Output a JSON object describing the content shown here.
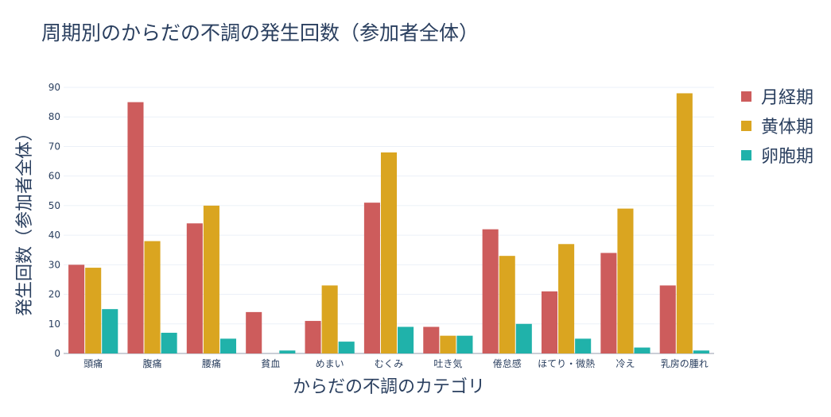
{
  "chart_data": {
    "type": "bar",
    "title": "周期別のからだの不調の発生回数（参加者全体）",
    "xlabel": "からだの不調のカテゴリ",
    "ylabel": "発生回数（参加者全体）",
    "ylim": [
      0,
      90
    ],
    "yticks": [
      0,
      10,
      20,
      30,
      40,
      50,
      60,
      70,
      80,
      90
    ],
    "grid": true,
    "legend_position": "right",
    "categories": [
      "頭痛",
      "腹痛",
      "腰痛",
      "貧血",
      "めまい",
      "むくみ",
      "吐き気",
      "倦怠感",
      "ほてり・微熱",
      "冷え",
      "乳房の腫れ"
    ],
    "series": [
      {
        "name": "月経期",
        "color": "#cd5c5c",
        "values": [
          30,
          85,
          44,
          14,
          11,
          51,
          9,
          42,
          21,
          34,
          23
        ]
      },
      {
        "name": "黄体期",
        "color": "#daa520",
        "values": [
          29,
          38,
          50,
          0,
          23,
          68,
          6,
          33,
          37,
          49,
          88
        ]
      },
      {
        "name": "卵胞期",
        "color": "#20b2aa",
        "values": [
          15,
          7,
          5,
          1,
          4,
          9,
          6,
          10,
          5,
          2,
          1
        ]
      }
    ]
  }
}
